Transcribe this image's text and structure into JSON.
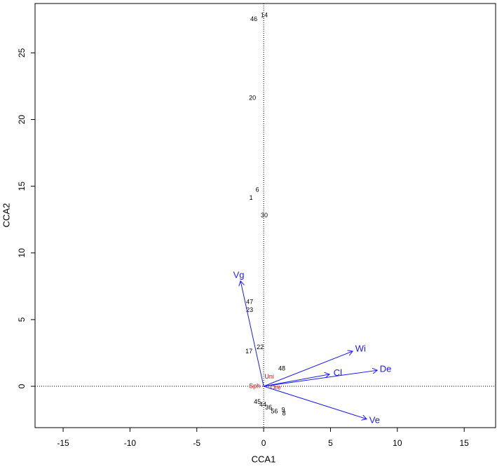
{
  "chart_data": {
    "type": "scatter",
    "xlabel": "CCA1",
    "ylabel": "CCA2",
    "xlim": [
      -17.1,
      17.35
    ],
    "ylim": [
      -3.1,
      28.7
    ],
    "xticks": [
      -15,
      -10,
      -5,
      0,
      5,
      10,
      15
    ],
    "yticks": [
      0,
      5,
      10,
      15,
      20,
      25
    ],
    "zero_lines": true,
    "sites": {
      "color": "#000000",
      "labels": [
        "14",
        "46",
        "20",
        "6",
        "1",
        "30",
        "47",
        "23",
        "22",
        "17",
        "48",
        "45",
        "44",
        "36",
        "56",
        "9",
        "8"
      ],
      "x": [
        0.05,
        -0.73,
        -0.84,
        -0.47,
        -0.94,
        0.05,
        -1.05,
        -1.05,
        -0.26,
        -1.1,
        1.36,
        -0.47,
        -0.05,
        0.37,
        0.8,
        1.47,
        1.52
      ],
      "y": [
        27.8,
        27.5,
        21.6,
        14.7,
        14.1,
        12.8,
        6.3,
        5.7,
        2.9,
        2.6,
        1.3,
        -1.2,
        -1.4,
        -1.6,
        -1.9,
        -1.8,
        -2.05
      ]
    },
    "species": {
      "color": "#e00000",
      "labels": [
        "Uni",
        "Sph",
        "Ore"
      ],
      "x": [
        0.42,
        -0.68,
        0.9
      ],
      "y": [
        0.7,
        0.0,
        -0.1
      ]
    },
    "arrows": {
      "color": "#1a1aff",
      "labels": [
        "Vg",
        "Wi",
        "Cl",
        "De",
        "Ve"
      ],
      "x": [
        -1.73,
        6.66,
        4.93,
        8.5,
        7.7
      ],
      "y": [
        7.9,
        2.63,
        0.9,
        1.2,
        -2.45
      ]
    }
  }
}
